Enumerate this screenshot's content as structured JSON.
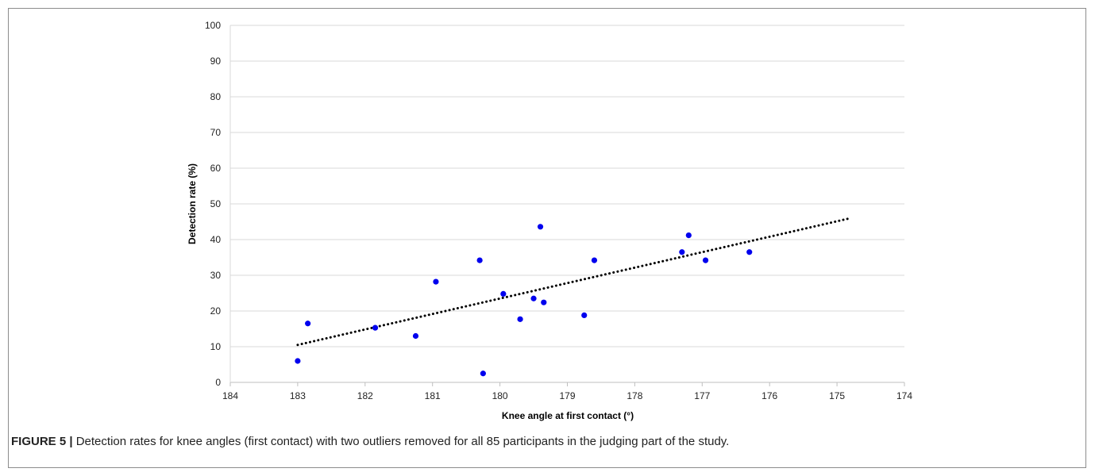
{
  "chart_data": {
    "type": "scatter",
    "xlabel": "Knee angle at first contact (°)",
    "ylabel": "Detection rate (%)",
    "xlim": [
      174,
      184
    ],
    "x_reversed": true,
    "ylim": [
      0,
      100
    ],
    "x_ticks": [
      "184",
      "183",
      "182",
      "181",
      "180",
      "179",
      "178",
      "177",
      "176",
      "175",
      "174"
    ],
    "y_ticks": [
      "0",
      "10",
      "20",
      "30",
      "40",
      "50",
      "60",
      "70",
      "80",
      "90",
      "100"
    ],
    "grid": "horizontal",
    "legend": "none",
    "series": [
      {
        "marker_color": "#0000ee",
        "points": [
          {
            "x": 183.0,
            "y": 6
          },
          {
            "x": 182.85,
            "y": 16.5
          },
          {
            "x": 181.85,
            "y": 15.3
          },
          {
            "x": 181.25,
            "y": 13
          },
          {
            "x": 180.95,
            "y": 28.2
          },
          {
            "x": 180.3,
            "y": 34.2
          },
          {
            "x": 180.25,
            "y": 2.5
          },
          {
            "x": 179.95,
            "y": 24.8
          },
          {
            "x": 179.7,
            "y": 17.7
          },
          {
            "x": 179.5,
            "y": 23.5
          },
          {
            "x": 179.4,
            "y": 43.6
          },
          {
            "x": 179.35,
            "y": 22.4
          },
          {
            "x": 178.75,
            "y": 18.8
          },
          {
            "x": 178.6,
            "y": 34.2
          },
          {
            "x": 177.3,
            "y": 36.5
          },
          {
            "x": 177.2,
            "y": 41.2
          },
          {
            "x": 176.95,
            "y": 34.2
          },
          {
            "x": 176.3,
            "y": 36.5
          }
        ]
      }
    ],
    "trendline": {
      "style": "dotted",
      "color": "#000000",
      "from": {
        "x": 183.0,
        "y": 10.5
      },
      "to": {
        "x": 174.8,
        "y": 46
      }
    }
  },
  "caption": {
    "label": "FIGURE 5 |",
    "text": " Detection rates for knee angles (first contact) with two outliers removed for all 85 participants in the judging part of the study."
  }
}
